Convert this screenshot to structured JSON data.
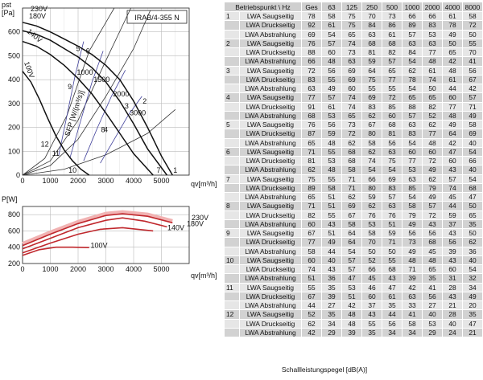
{
  "chart_data": [
    {
      "type": "line",
      "title": "IRAB/4-355 N",
      "ylabel_top": "pst",
      "ylabel_unit": "[Pa]",
      "xlabel": "qv[m³/h]",
      "xlim": [
        0,
        6000
      ],
      "ylim": [
        0,
        700
      ],
      "x_ticks": [
        0,
        1000,
        2000,
        3000,
        4000,
        5000
      ],
      "y_ticks": [
        0,
        100,
        200,
        300,
        400,
        500,
        600
      ],
      "series": [
        {
          "name": "230V",
          "x": [
            0,
            500,
            1000,
            1500,
            2000,
            2500,
            3000,
            3500,
            4000,
            4500,
            5000,
            5400
          ],
          "y": [
            640,
            625,
            600,
            570,
            540,
            505,
            460,
            400,
            310,
            200,
            80,
            0
          ]
        },
        {
          "name": "180V",
          "x": [
            0,
            500,
            1000,
            1500,
            2000,
            2500,
            3000,
            3500,
            4000,
            4500,
            5200
          ],
          "y": [
            605,
            590,
            565,
            530,
            495,
            450,
            390,
            310,
            215,
            110,
            0
          ]
        },
        {
          "name": "140V",
          "x": [
            0,
            500,
            1000,
            1500,
            2000,
            2500,
            3000,
            3500,
            4000,
            4700
          ],
          "y": [
            560,
            540,
            505,
            460,
            405,
            340,
            260,
            175,
            90,
            0
          ]
        },
        {
          "name": "100V",
          "x": [
            0,
            300,
            600,
            900,
            1200,
            1500,
            1800,
            2100,
            2400
          ],
          "y": [
            435,
            390,
            320,
            240,
            165,
            105,
            60,
            25,
            0
          ]
        }
      ],
      "system_curves": [
        {
          "name": "1",
          "x": [
            0,
            1500,
            3000,
            4500,
            5500
          ],
          "y": [
            0,
            25,
            85,
            175,
            275
          ]
        },
        {
          "name": "2",
          "x": [
            0,
            1000,
            2000,
            3000,
            4000,
            4600
          ],
          "y": [
            0,
            40,
            150,
            330,
            530,
            690
          ]
        },
        {
          "name": "3",
          "x": [
            0,
            1000,
            2000,
            3000,
            3900
          ],
          "y": [
            0,
            60,
            230,
            480,
            700
          ]
        },
        {
          "name": "4",
          "x": [
            0,
            800,
            1600,
            2400,
            3300
          ],
          "y": [
            0,
            70,
            250,
            520,
            700
          ]
        }
      ],
      "sfp_lines": [
        {
          "name": "1000",
          "x": [
            1300,
            1600,
            1900,
            2200
          ],
          "y": [
            80,
            250,
            420,
            560
          ]
        },
        {
          "name": "1500",
          "x": [
            1700,
            2100,
            2500,
            2900
          ],
          "y": [
            70,
            230,
            390,
            520
          ]
        },
        {
          "name": "2000",
          "x": [
            2200,
            2700,
            3200,
            3700
          ],
          "y": [
            60,
            200,
            330,
            440
          ]
        },
        {
          "name": "3000",
          "x": [
            2800,
            3300,
            3800,
            4300
          ],
          "y": [
            50,
            150,
            250,
            330
          ]
        }
      ],
      "annotations": {
        "sfp_label": "SFP [W/(m³/s)]",
        "points": [
          "1",
          "2",
          "3",
          "4",
          "5",
          "6",
          "7",
          "8",
          "9",
          "10",
          "11",
          "12"
        ],
        "voltage_labels": [
          "230V",
          "180V",
          "140V",
          "100V"
        ]
      }
    },
    {
      "type": "line",
      "ylabel_top": "P[W]",
      "xlabel": "qv[m³/h]",
      "xlim": [
        0,
        6000
      ],
      "ylim": [
        200,
        900
      ],
      "x_ticks": [
        0,
        1000,
        2000,
        3000,
        4000,
        5000
      ],
      "y_ticks": [
        200,
        400,
        600,
        800
      ],
      "series": [
        {
          "name": "230V",
          "x": [
            0,
            1000,
            2000,
            3000,
            3600,
            4500,
            5400
          ],
          "y": [
            420,
            560,
            690,
            790,
            810,
            780,
            700
          ]
        },
        {
          "name": "180V",
          "x": [
            0,
            1000,
            2000,
            3000,
            3600,
            4400,
            5200
          ],
          "y": [
            380,
            510,
            640,
            730,
            760,
            720,
            650
          ]
        },
        {
          "name": "140V",
          "x": [
            0,
            1000,
            2000,
            2800,
            3600,
            4700
          ],
          "y": [
            330,
            450,
            560,
            620,
            640,
            600
          ]
        },
        {
          "name": "100V",
          "x": [
            0,
            600,
            1200,
            1800,
            2400
          ],
          "y": [
            300,
            370,
            400,
            400,
            395
          ]
        }
      ],
      "annotations": {
        "voltage_labels": [
          "230V",
          "180V",
          "140V",
          "100V"
        ]
      }
    }
  ],
  "table": {
    "headers": [
      "Betriebspunkt \\ Hz",
      "Ges",
      "63",
      "125",
      "250",
      "500",
      "1000",
      "2000",
      "4000",
      "8000"
    ],
    "rows": [
      [
        "1",
        "LWA Saugseitig",
        "78",
        "58",
        "75",
        "70",
        "73",
        "66",
        "66",
        "61",
        "58"
      ],
      [
        "",
        "LWA Druckseitig",
        "92",
        "61",
        "75",
        "84",
        "86",
        "89",
        "83",
        "78",
        "72"
      ],
      [
        "",
        "LWA Abstrahlung",
        "69",
        "54",
        "65",
        "63",
        "61",
        "57",
        "53",
        "49",
        "50"
      ],
      [
        "2",
        "LWA Saugseitig",
        "76",
        "57",
        "74",
        "68",
        "68",
        "63",
        "63",
        "50",
        "55"
      ],
      [
        "",
        "LWA Druckseitig",
        "88",
        "60",
        "73",
        "81",
        "82",
        "84",
        "77",
        "65",
        "70"
      ],
      [
        "",
        "LWA Abstrahlung",
        "66",
        "48",
        "63",
        "59",
        "57",
        "54",
        "48",
        "42",
        "41"
      ],
      [
        "3",
        "LWA Saugseitig",
        "72",
        "56",
        "69",
        "64",
        "65",
        "62",
        "61",
        "48",
        "56"
      ],
      [
        "",
        "LWA Druckseitig",
        "83",
        "55",
        "69",
        "75",
        "77",
        "78",
        "74",
        "61",
        "67"
      ],
      [
        "",
        "LWA Abstrahlung",
        "63",
        "49",
        "60",
        "55",
        "55",
        "54",
        "50",
        "44",
        "42"
      ],
      [
        "4",
        "LWA Saugseitig",
        "77",
        "57",
        "74",
        "69",
        "72",
        "65",
        "65",
        "60",
        "57"
      ],
      [
        "",
        "LWA Druckseitig",
        "91",
        "61",
        "74",
        "83",
        "85",
        "88",
        "82",
        "77",
        "71"
      ],
      [
        "",
        "LWA Abstrahlung",
        "68",
        "53",
        "65",
        "62",
        "60",
        "57",
        "52",
        "48",
        "49"
      ],
      [
        "5",
        "LWA Saugseitig",
        "76",
        "56",
        "73",
        "67",
        "68",
        "63",
        "62",
        "49",
        "58"
      ],
      [
        "",
        "LWA Druckseitig",
        "87",
        "59",
        "72",
        "80",
        "81",
        "83",
        "77",
        "64",
        "69"
      ],
      [
        "",
        "LWA Abstrahlung",
        "65",
        "48",
        "62",
        "58",
        "56",
        "54",
        "48",
        "42",
        "40"
      ],
      [
        "6",
        "LWA Saugseitig",
        "71",
        "55",
        "68",
        "62",
        "63",
        "60",
        "60",
        "47",
        "54"
      ],
      [
        "",
        "LWA Druckseitig",
        "81",
        "53",
        "68",
        "74",
        "75",
        "77",
        "72",
        "60",
        "66"
      ],
      [
        "",
        "LWA Abstrahlung",
        "62",
        "48",
        "58",
        "54",
        "54",
        "53",
        "49",
        "43",
        "40"
      ],
      [
        "7",
        "LWA Saugseitig",
        "75",
        "55",
        "71",
        "66",
        "69",
        "63",
        "62",
        "57",
        "54"
      ],
      [
        "",
        "LWA Druckseitig",
        "89",
        "58",
        "71",
        "80",
        "83",
        "85",
        "79",
        "74",
        "68"
      ],
      [
        "",
        "LWA Abstrahlung",
        "65",
        "51",
        "62",
        "59",
        "57",
        "54",
        "49",
        "45",
        "47"
      ],
      [
        "8",
        "LWA Saugseitig",
        "71",
        "51",
        "69",
        "62",
        "63",
        "58",
        "57",
        "44",
        "50"
      ],
      [
        "",
        "LWA Druckseitig",
        "82",
        "55",
        "67",
        "76",
        "76",
        "79",
        "72",
        "59",
        "65"
      ],
      [
        "",
        "LWA Abstrahlung",
        "60",
        "43",
        "58",
        "53",
        "51",
        "49",
        "43",
        "37",
        "35"
      ],
      [
        "9",
        "LWA Saugseitig",
        "67",
        "51",
        "64",
        "58",
        "59",
        "56",
        "56",
        "43",
        "50"
      ],
      [
        "",
        "LWA Druckseitig",
        "77",
        "49",
        "64",
        "70",
        "71",
        "73",
        "68",
        "56",
        "62"
      ],
      [
        "",
        "LWA Abstrahlung",
        "58",
        "44",
        "54",
        "50",
        "50",
        "49",
        "45",
        "39",
        "36"
      ],
      [
        "10",
        "LWA Saugseitig",
        "60",
        "40",
        "57",
        "52",
        "55",
        "48",
        "48",
        "43",
        "40"
      ],
      [
        "",
        "LWA Druckseitig",
        "74",
        "43",
        "57",
        "66",
        "68",
        "71",
        "65",
        "60",
        "54"
      ],
      [
        "",
        "LWA Abstrahlung",
        "51",
        "36",
        "47",
        "45",
        "43",
        "39",
        "35",
        "31",
        "32"
      ],
      [
        "11",
        "LWA Saugseitig",
        "55",
        "35",
        "53",
        "46",
        "47",
        "42",
        "41",
        "28",
        "34"
      ],
      [
        "",
        "LWA Druckseitig",
        "67",
        "39",
        "51",
        "60",
        "61",
        "63",
        "56",
        "43",
        "49"
      ],
      [
        "",
        "LWA Abstrahlung",
        "44",
        "27",
        "42",
        "37",
        "35",
        "33",
        "27",
        "21",
        "20"
      ],
      [
        "12",
        "LWA Saugseitig",
        "52",
        "35",
        "48",
        "43",
        "44",
        "41",
        "40",
        "28",
        "35"
      ],
      [
        "",
        "LWA Druckseitig",
        "62",
        "34",
        "48",
        "55",
        "56",
        "58",
        "53",
        "40",
        "47"
      ],
      [
        "",
        "LWA Abstrahlung",
        "42",
        "29",
        "39",
        "35",
        "34",
        "34",
        "29",
        "24",
        "21"
      ]
    ]
  },
  "caption": "Schallleistungspegel [dB(A)]"
}
